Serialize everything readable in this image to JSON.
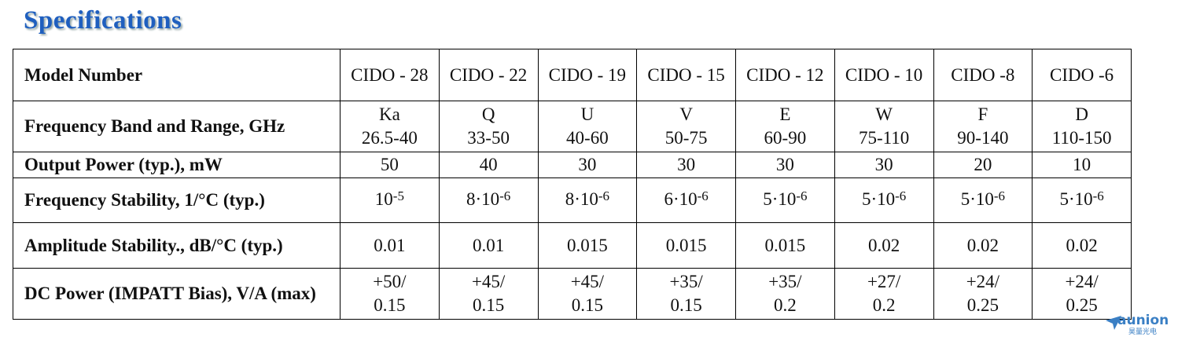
{
  "header": {
    "title": "Specifications"
  },
  "table": {
    "row_labels": [
      "Model Number",
      "Frequency Band and Range, GHz",
      "Output Power (typ.), mW",
      "Frequency Stability, 1/°C (typ.)",
      "Amplitude Stability., dB/°C (typ.)",
      "DC Power (IMPATT Bias), V/A (max)"
    ],
    "models": [
      "CIDO - 28",
      "CIDO - 22",
      "CIDO - 19",
      "CIDO - 15",
      "CIDO - 12",
      "CIDO - 10",
      "CIDO -8",
      "CIDO -6"
    ],
    "bands": [
      {
        "band": "Ka",
        "range": "26.5-40"
      },
      {
        "band": "Q",
        "range": "33-50"
      },
      {
        "band": "U",
        "range": "40-60"
      },
      {
        "band": "V",
        "range": "50-75"
      },
      {
        "band": "E",
        "range": "60-90"
      },
      {
        "band": "W",
        "range": "75-110"
      },
      {
        "band": "F",
        "range": "90-140"
      },
      {
        "band": "D",
        "range": "110-150"
      }
    ],
    "output_power": [
      "50",
      "40",
      "30",
      "30",
      "30",
      "30",
      "20",
      "10"
    ],
    "frequency_stability": [
      {
        "base": "10",
        "exp": "-5"
      },
      {
        "base": "8·10",
        "exp": "-6"
      },
      {
        "base": "8·10",
        "exp": "-6"
      },
      {
        "base": "6·10",
        "exp": "-6"
      },
      {
        "base": "5·10",
        "exp": "-6"
      },
      {
        "base": "5·10",
        "exp": "-6"
      },
      {
        "base": "5·10",
        "exp": "-6"
      },
      {
        "base": "5·10",
        "exp": "-6"
      }
    ],
    "amplitude_stability": [
      "0.01",
      "0.01",
      "0.015",
      "0.015",
      "0.015",
      "0.02",
      "0.02",
      "0.02"
    ],
    "dc_power": [
      {
        "voltage": "+50/",
        "current": "0.15"
      },
      {
        "voltage": "+45/",
        "current": "0.15"
      },
      {
        "voltage": "+45/",
        "current": "0.15"
      },
      {
        "voltage": "+35/",
        "current": "0.15"
      },
      {
        "voltage": "+35/",
        "current": "0.2"
      },
      {
        "voltage": "+27/",
        "current": "0.2"
      },
      {
        "voltage": "+24/",
        "current": "0.25"
      },
      {
        "voltage": "+24/",
        "current": "0.25"
      }
    ]
  },
  "watermark": {
    "brand": "aunion",
    "subtitle": "昊量光电"
  }
}
